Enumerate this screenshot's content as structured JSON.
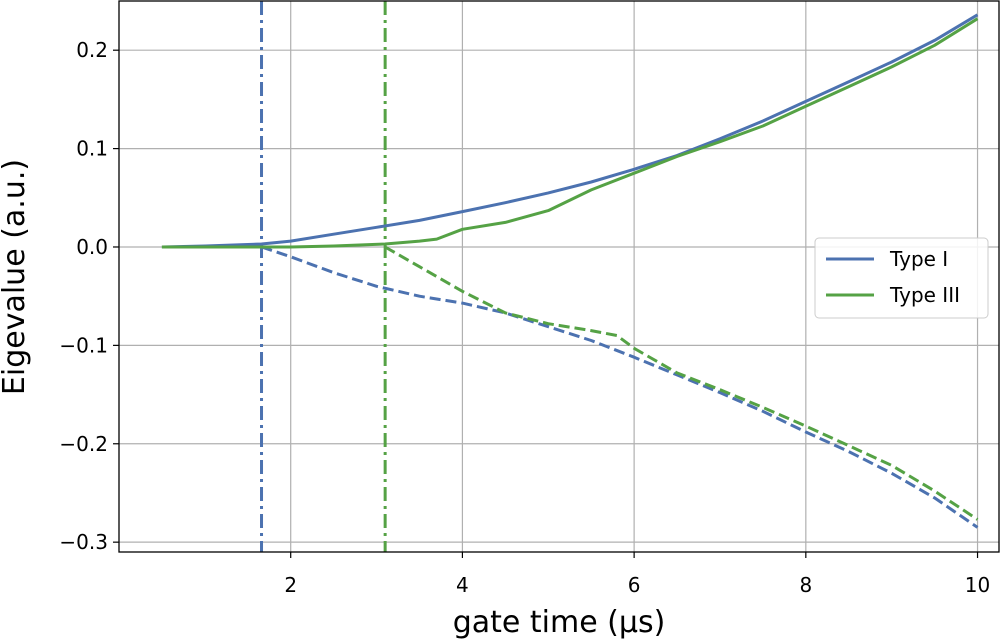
{
  "chart_data": {
    "type": "line",
    "title": "",
    "xlabel": "gate time (μs)",
    "ylabel": "Eigevalue (a.u.)",
    "xlim": [
      0.0,
      10.25
    ],
    "ylim": [
      -0.31,
      0.25
    ],
    "xticks": [
      2,
      4,
      6,
      8,
      10
    ],
    "xtick_labels": [
      "2",
      "4",
      "6",
      "8",
      "10"
    ],
    "yticks": [
      -0.3,
      -0.2,
      -0.1,
      0.0,
      0.1,
      0.2
    ],
    "ytick_labels": [
      "−0.3",
      "−0.2",
      "−0.1",
      "0.0",
      "0.1",
      "0.2"
    ],
    "grid": true,
    "legend_position": "center-right",
    "legend": [
      {
        "label": "Type I",
        "color": "#4c72b0"
      },
      {
        "label": "Type III",
        "color": "#55a245"
      }
    ],
    "vlines": [
      {
        "x": 1.66,
        "color": "#4c72b0",
        "style": "dashdot"
      },
      {
        "x": 3.1,
        "color": "#55a245",
        "style": "dashdot"
      }
    ],
    "series": [
      {
        "name": "Type I",
        "color": "#4c72b0",
        "style": "solid",
        "x": [
          0.5,
          1.0,
          1.66,
          2.0,
          2.5,
          3.0,
          3.5,
          4.0,
          4.5,
          5.0,
          5.5,
          6.0,
          6.5,
          7.0,
          7.5,
          8.0,
          8.5,
          9.0,
          9.5,
          10.0
        ],
        "y": [
          0.0,
          0.001,
          0.003,
          0.006,
          0.013,
          0.02,
          0.027,
          0.036,
          0.045,
          0.055,
          0.066,
          0.079,
          0.093,
          0.11,
          0.128,
          0.148,
          0.168,
          0.188,
          0.21,
          0.236
        ]
      },
      {
        "name": "Type I",
        "color": "#4c72b0",
        "style": "dashed",
        "x": [
          1.66,
          2.0,
          2.5,
          3.0,
          3.5,
          4.0,
          4.5,
          5.0,
          5.5,
          6.0,
          6.5,
          7.0,
          7.5,
          8.0,
          8.5,
          9.0,
          9.5,
          10.0
        ],
        "y": [
          0.0,
          -0.01,
          -0.026,
          -0.04,
          -0.05,
          -0.057,
          -0.067,
          -0.081,
          -0.095,
          -0.112,
          -0.13,
          -0.148,
          -0.167,
          -0.188,
          -0.208,
          -0.23,
          -0.255,
          -0.285
        ]
      },
      {
        "name": "Type III",
        "color": "#55a245",
        "style": "solid",
        "x": [
          0.5,
          1.0,
          2.0,
          2.5,
          3.1,
          3.5,
          3.7,
          4.0,
          4.5,
          5.0,
          5.5,
          6.0,
          6.5,
          7.0,
          7.5,
          8.0,
          8.5,
          9.0,
          9.5,
          10.0
        ],
        "y": [
          0.0,
          0.0,
          0.0,
          0.001,
          0.003,
          0.006,
          0.008,
          0.018,
          0.025,
          0.037,
          0.058,
          0.075,
          0.092,
          0.107,
          0.123,
          0.143,
          0.163,
          0.183,
          0.205,
          0.232
        ]
      },
      {
        "name": "Type III",
        "color": "#55a245",
        "style": "dashed",
        "x": [
          3.1,
          3.5,
          4.0,
          4.5,
          5.0,
          5.5,
          5.8,
          6.0,
          6.5,
          7.0,
          7.5,
          8.0,
          8.5,
          9.0,
          9.5,
          10.0
        ],
        "y": [
          0.0,
          -0.02,
          -0.045,
          -0.067,
          -0.078,
          -0.085,
          -0.09,
          -0.103,
          -0.128,
          -0.145,
          -0.163,
          -0.182,
          -0.202,
          -0.222,
          -0.248,
          -0.277
        ]
      }
    ]
  }
}
